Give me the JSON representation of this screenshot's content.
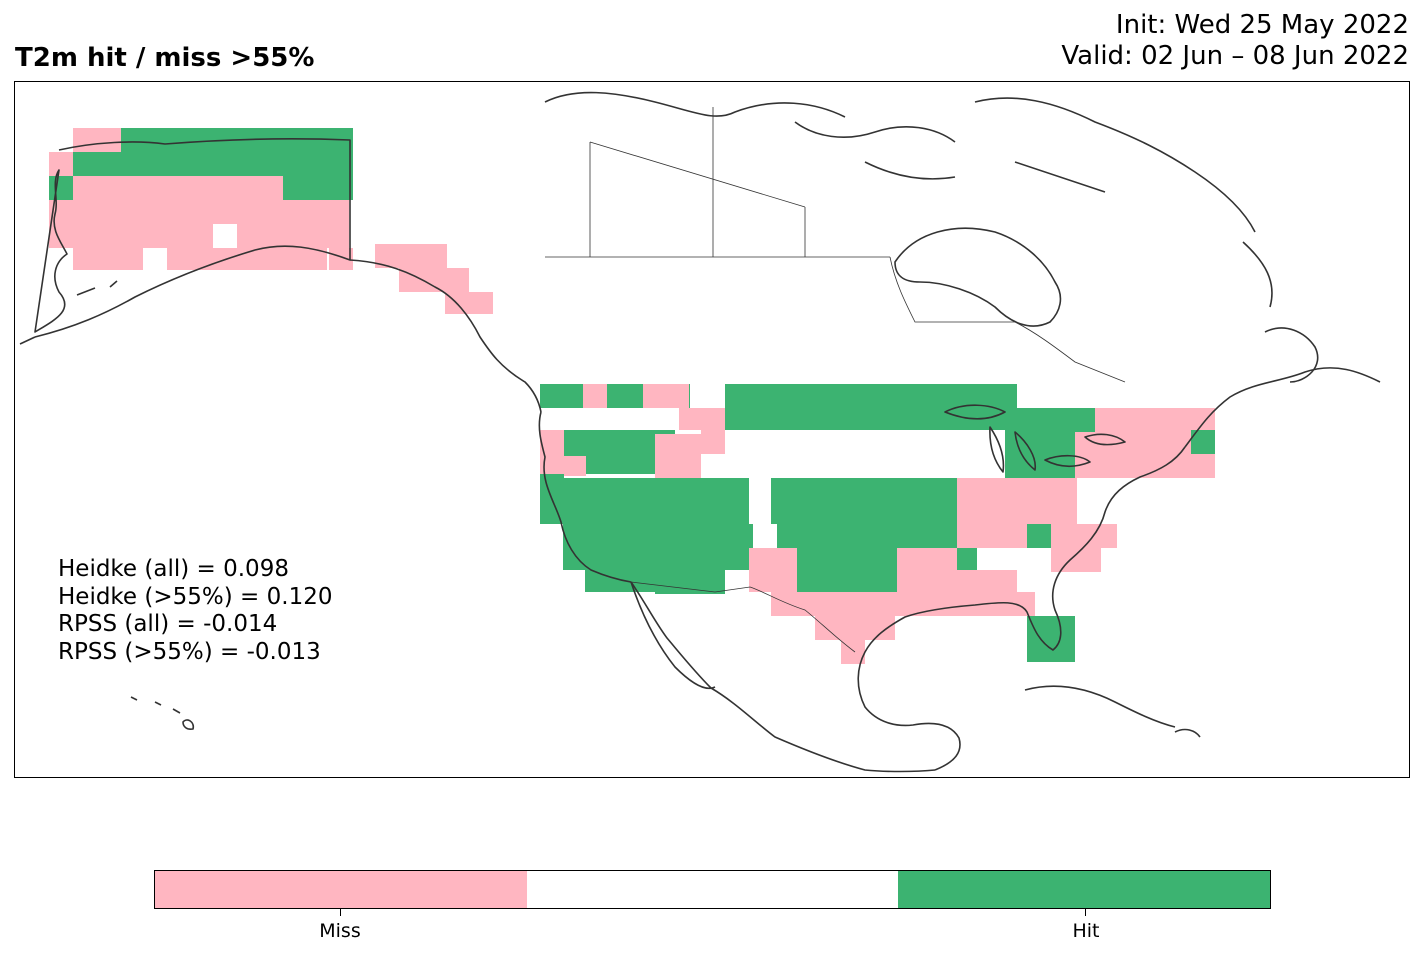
{
  "header": {
    "title": "T2m hit / miss  >55%",
    "init_line": "Init: Wed 25 May 2022",
    "valid_line": "Valid: 02 Jun – 08 Jun 2022"
  },
  "stats": [
    "Heidke (all) = 0.098",
    "Heidke (>55%) = 0.120",
    "RPSS (all) = -0.014",
    "RPSS (>55%) = -0.013"
  ],
  "colors": {
    "miss": "#ffb6c1",
    "hit": "#3cb371",
    "neutral": "#ffffff",
    "coast": "#333333"
  },
  "legend": {
    "miss_label": "Miss",
    "hit_label": "Hit"
  },
  "map_data": {
    "categories": [
      "miss",
      "neutral",
      "hit"
    ],
    "note_hit_regions": [
      "Northern Alaska",
      "Pacific Northwest",
      "Great Basin",
      "Southwest",
      "Northern & Central Plains",
      "Upper Midwest",
      "Great Lakes",
      "South Florida"
    ],
    "note_miss_regions": [
      "Southwest Alaska",
      "Alaska Panhandle",
      "Southern Plains / Texas",
      "Southeast US",
      "Ohio Valley",
      "Mid-Atlantic",
      "Northeast US"
    ]
  }
}
